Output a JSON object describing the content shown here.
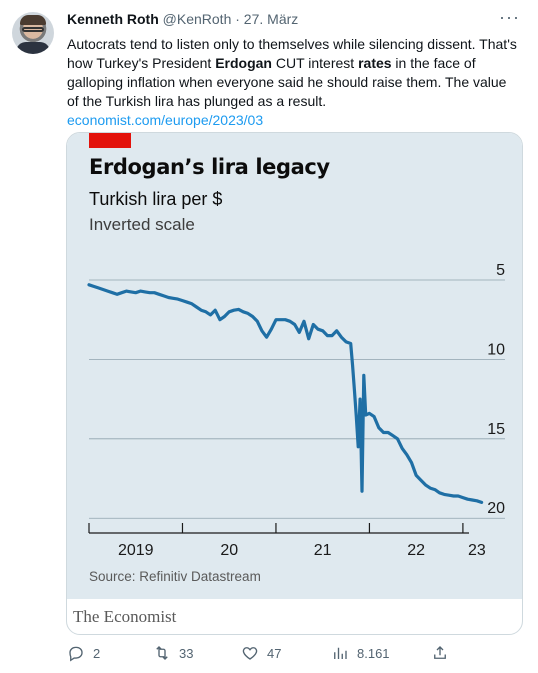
{
  "tweet": {
    "author_name": "Kenneth Roth",
    "author_handle": "@KenRoth",
    "date": "· 27. März",
    "text_parts": [
      "Autocrats tend to listen only to themselves while silencing dissent. That's how Turkey's President ",
      "Erdogan",
      " CUT interest ",
      "rates",
      " in the face of galloping inflation when everyone said he should raise them. The value of the Turkish lira has plunged as a result. "
    ],
    "link_text": "economist.com/europe/2023/03",
    "link_ellipsis": "…",
    "more_icon": "more-horizontal-icon"
  },
  "card": {
    "source": "Source: Refinitiv Datastream",
    "publisher": "The Economist",
    "tag_color": "#e3120b",
    "background": "#dfe9ef"
  },
  "chart_data": {
    "type": "line",
    "title": "Erdogan’s lira legacy",
    "subtitle": "Turkish lira per $",
    "note": "Inverted scale",
    "y_inverted": true,
    "ylim": [
      3.3,
      20.3
    ],
    "y_ticks": [
      5,
      10,
      15,
      20
    ],
    "x_ticks": [
      {
        "label": "2019",
        "value": 2019.5
      },
      {
        "label": "20",
        "value": 2020.5
      },
      {
        "label": "21",
        "value": 2021.5
      },
      {
        "label": "22",
        "value": 2022.5
      },
      {
        "label": "23",
        "value": 2023.15
      }
    ],
    "x_range": [
      2019.0,
      2023.25
    ],
    "year_boundaries": [
      2019.0,
      2020.0,
      2021.0,
      2022.0,
      2023.0
    ],
    "grid": true,
    "line_color": "#1f6fa5",
    "x": [
      2019.0,
      2019.05,
      2019.1,
      2019.15,
      2019.2,
      2019.25,
      2019.3,
      2019.35,
      2019.4,
      2019.45,
      2019.5,
      2019.55,
      2019.6,
      2019.65,
      2019.7,
      2019.75,
      2019.8,
      2019.85,
      2019.9,
      2019.95,
      2020.0,
      2020.05,
      2020.1,
      2020.15,
      2020.2,
      2020.25,
      2020.3,
      2020.35,
      2020.4,
      2020.45,
      2020.5,
      2020.55,
      2020.6,
      2020.65,
      2020.7,
      2020.75,
      2020.8,
      2020.85,
      2020.9,
      2020.95,
      2021.0,
      2021.05,
      2021.1,
      2021.15,
      2021.2,
      2021.25,
      2021.3,
      2021.35,
      2021.4,
      2021.45,
      2021.5,
      2021.55,
      2021.6,
      2021.65,
      2021.7,
      2021.75,
      2021.8,
      2021.82,
      2021.84,
      2021.86,
      2021.88,
      2021.9,
      2021.92,
      2021.94,
      2021.96,
      2022.0,
      2022.05,
      2022.1,
      2022.15,
      2022.2,
      2022.25,
      2022.3,
      2022.35,
      2022.4,
      2022.45,
      2022.5,
      2022.55,
      2022.6,
      2022.65,
      2022.7,
      2022.75,
      2022.8,
      2022.85,
      2022.9,
      2022.95,
      2023.0,
      2023.05,
      2023.1,
      2023.15,
      2023.2
    ],
    "y": [
      5.3,
      5.4,
      5.5,
      5.6,
      5.7,
      5.8,
      5.9,
      5.8,
      5.7,
      5.75,
      5.8,
      5.7,
      5.75,
      5.8,
      5.8,
      5.9,
      6.0,
      6.1,
      6.15,
      6.2,
      6.3,
      6.4,
      6.5,
      6.7,
      6.9,
      7.0,
      7.2,
      6.9,
      7.5,
      7.3,
      7.0,
      6.9,
      6.85,
      7.0,
      7.1,
      7.3,
      7.6,
      8.2,
      8.6,
      8.1,
      7.5,
      7.5,
      7.5,
      7.6,
      7.8,
      8.3,
      7.6,
      8.7,
      7.8,
      8.1,
      8.2,
      8.5,
      8.5,
      8.2,
      8.6,
      8.9,
      9.0,
      10.4,
      12.0,
      13.6,
      15.5,
      12.5,
      18.3,
      11.0,
      13.5,
      13.4,
      13.6,
      14.3,
      14.6,
      14.6,
      14.8,
      15.0,
      15.6,
      16.0,
      16.5,
      17.3,
      17.6,
      17.9,
      18.1,
      18.2,
      18.4,
      18.5,
      18.55,
      18.6,
      18.6,
      18.7,
      18.8,
      18.85,
      18.9,
      19.0
    ]
  },
  "actions": {
    "reply_count": "2",
    "retweet_count": "33",
    "like_count": "47",
    "view_count": "8.161"
  }
}
